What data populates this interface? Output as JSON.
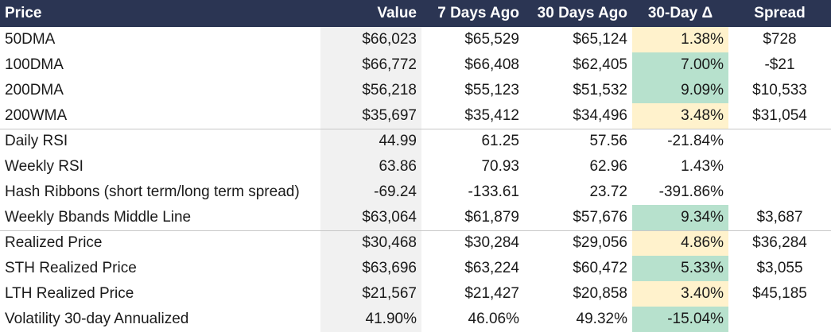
{
  "columns": {
    "label": "Price",
    "value": "Value",
    "d7": "7 Days Ago",
    "d30": "30 Days Ago",
    "delta": "30-Day Δ",
    "spread": "Spread"
  },
  "highlight_colors": {
    "green": "#b7e1cd",
    "yellow": "#fff2cc",
    "header_bg": "#2b3553"
  },
  "rows": [
    {
      "label": "50DMA",
      "value": "$66,023",
      "d7": "$65,529",
      "d30": "$65,124",
      "delta": "1.38%",
      "spread": "$728",
      "hl": "yellow"
    },
    {
      "label": "100DMA",
      "value": "$66,772",
      "d7": "$66,408",
      "d30": "$62,405",
      "delta": "7.00%",
      "spread": "-$21",
      "hl": "green"
    },
    {
      "label": "200DMA",
      "value": "$56,218",
      "d7": "$55,123",
      "d30": "$51,532",
      "delta": "9.09%",
      "spread": "$10,533",
      "hl": "green"
    },
    {
      "label": "200WMA",
      "value": "$35,697",
      "d7": "$35,412",
      "d30": "$34,496",
      "delta": "3.48%",
      "spread": "$31,054",
      "hl": "yellow"
    },
    {
      "label": "Daily RSI",
      "value": "44.99",
      "d7": "61.25",
      "d30": "57.56",
      "delta": "-21.84%",
      "spread": "",
      "hl": ""
    },
    {
      "label": "Weekly RSI",
      "value": "63.86",
      "d7": "70.93",
      "d30": "62.96",
      "delta": "1.43%",
      "spread": "",
      "hl": ""
    },
    {
      "label": "Hash Ribbons (short term/long term spread)",
      "value": "-69.24",
      "d7": "-133.61",
      "d30": "23.72",
      "delta": "-391.86%",
      "spread": "",
      "hl": ""
    },
    {
      "label": "Weekly Bbands Middle Line",
      "value": "$63,064",
      "d7": "$61,879",
      "d30": "$57,676",
      "delta": "9.34%",
      "spread": "$3,687",
      "hl": "green"
    },
    {
      "label": "Realized Price",
      "value": "$30,468",
      "d7": "$30,284",
      "d30": "$29,056",
      "delta": "4.86%",
      "spread": "$36,284",
      "hl": "yellow"
    },
    {
      "label": "STH Realized Price",
      "value": "$63,696",
      "d7": "$63,224",
      "d30": "$60,472",
      "delta": "5.33%",
      "spread": "$3,055",
      "hl": "green"
    },
    {
      "label": "LTH Realized Price",
      "value": "$21,567",
      "d7": "$21,427",
      "d30": "$20,858",
      "delta": "3.40%",
      "spread": "$45,185",
      "hl": "yellow"
    },
    {
      "label": "Volatility 30-day Annualized",
      "value": "41.90%",
      "d7": "46.06%",
      "d30": "49.32%",
      "delta": "-15.04%",
      "spread": "",
      "hl": "green"
    }
  ]
}
